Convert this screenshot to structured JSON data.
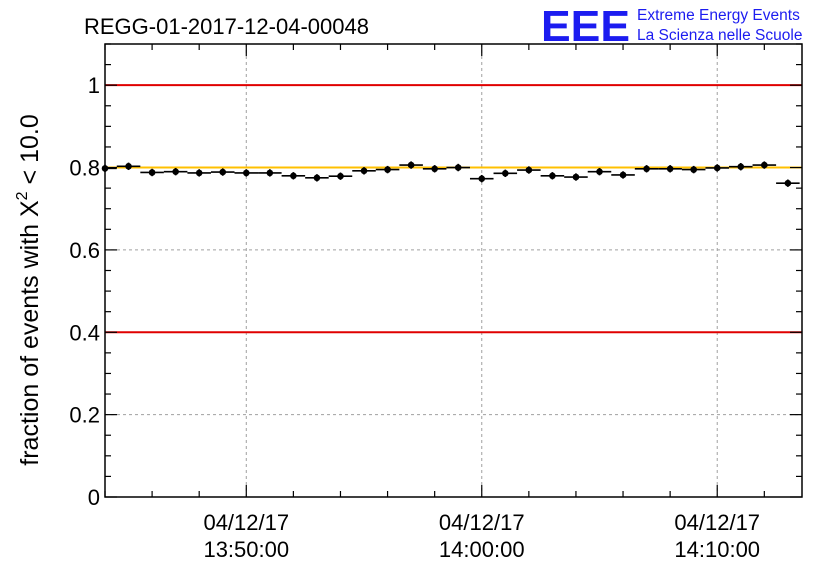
{
  "chart_data": {
    "type": "scatter",
    "title": "REGG-01-2017-12-04-00048",
    "ylabel": "fraction of events with X² < 10.0",
    "ylabel_parts": {
      "before": "fraction of events with ",
      "symbol": "X",
      "exponent": "2",
      "after": " < 10.0"
    },
    "xlabel": "",
    "ylim": [
      0,
      1.1
    ],
    "xlim_minutes": [
      -6.0,
      23.6
    ],
    "yticks": [
      {
        "value": 0,
        "label": "0"
      },
      {
        "value": 0.2,
        "label": "0.2"
      },
      {
        "value": 0.4,
        "label": "0.4"
      },
      {
        "value": 0.6,
        "label": "0.6"
      },
      {
        "value": 0.8,
        "label": "0.8"
      },
      {
        "value": 1,
        "label": "1"
      }
    ],
    "xticks": [
      {
        "minutes": 0,
        "date": "04/12/17",
        "time": "13:50:00"
      },
      {
        "minutes": 10,
        "date": "04/12/17",
        "time": "14:00:00"
      },
      {
        "minutes": 20,
        "date": "04/12/17",
        "time": "14:10:00"
      }
    ],
    "grid": true,
    "reference_lines": [
      {
        "value": 1.0,
        "color": "#e00000"
      },
      {
        "value": 0.4,
        "color": "#e00000"
      },
      {
        "value": 0.8,
        "color": "#ffc000"
      }
    ],
    "bin_width_minutes": 1.0,
    "points": [
      {
        "x": -6.0,
        "y": 0.798
      },
      {
        "x": -5.0,
        "y": 0.803
      },
      {
        "x": -4.0,
        "y": 0.788
      },
      {
        "x": -3.0,
        "y": 0.79
      },
      {
        "x": -2.0,
        "y": 0.787
      },
      {
        "x": -1.0,
        "y": 0.789
      },
      {
        "x": 0.0,
        "y": 0.787
      },
      {
        "x": 1.0,
        "y": 0.787
      },
      {
        "x": 2.0,
        "y": 0.78
      },
      {
        "x": 3.0,
        "y": 0.775
      },
      {
        "x": 4.0,
        "y": 0.779
      },
      {
        "x": 5.0,
        "y": 0.792
      },
      {
        "x": 6.0,
        "y": 0.795
      },
      {
        "x": 7.0,
        "y": 0.806
      },
      {
        "x": 8.0,
        "y": 0.797
      },
      {
        "x": 9.0,
        "y": 0.8
      },
      {
        "x": 10.0,
        "y": 0.773
      },
      {
        "x": 11.0,
        "y": 0.786
      },
      {
        "x": 12.0,
        "y": 0.794
      },
      {
        "x": 13.0,
        "y": 0.78
      },
      {
        "x": 14.0,
        "y": 0.777
      },
      {
        "x": 15.0,
        "y": 0.79
      },
      {
        "x": 16.0,
        "y": 0.782
      },
      {
        "x": 17.0,
        "y": 0.797
      },
      {
        "x": 18.0,
        "y": 0.797
      },
      {
        "x": 19.0,
        "y": 0.795
      },
      {
        "x": 20.0,
        "y": 0.799
      },
      {
        "x": 21.0,
        "y": 0.802
      },
      {
        "x": 22.0,
        "y": 0.806
      },
      {
        "x": 23.0,
        "y": 0.762
      }
    ],
    "y_error": 0.009
  },
  "logo": {
    "letters": "EEE",
    "line1": "Extreme Energy Events",
    "line2": "La Scienza nelle Scuole"
  }
}
